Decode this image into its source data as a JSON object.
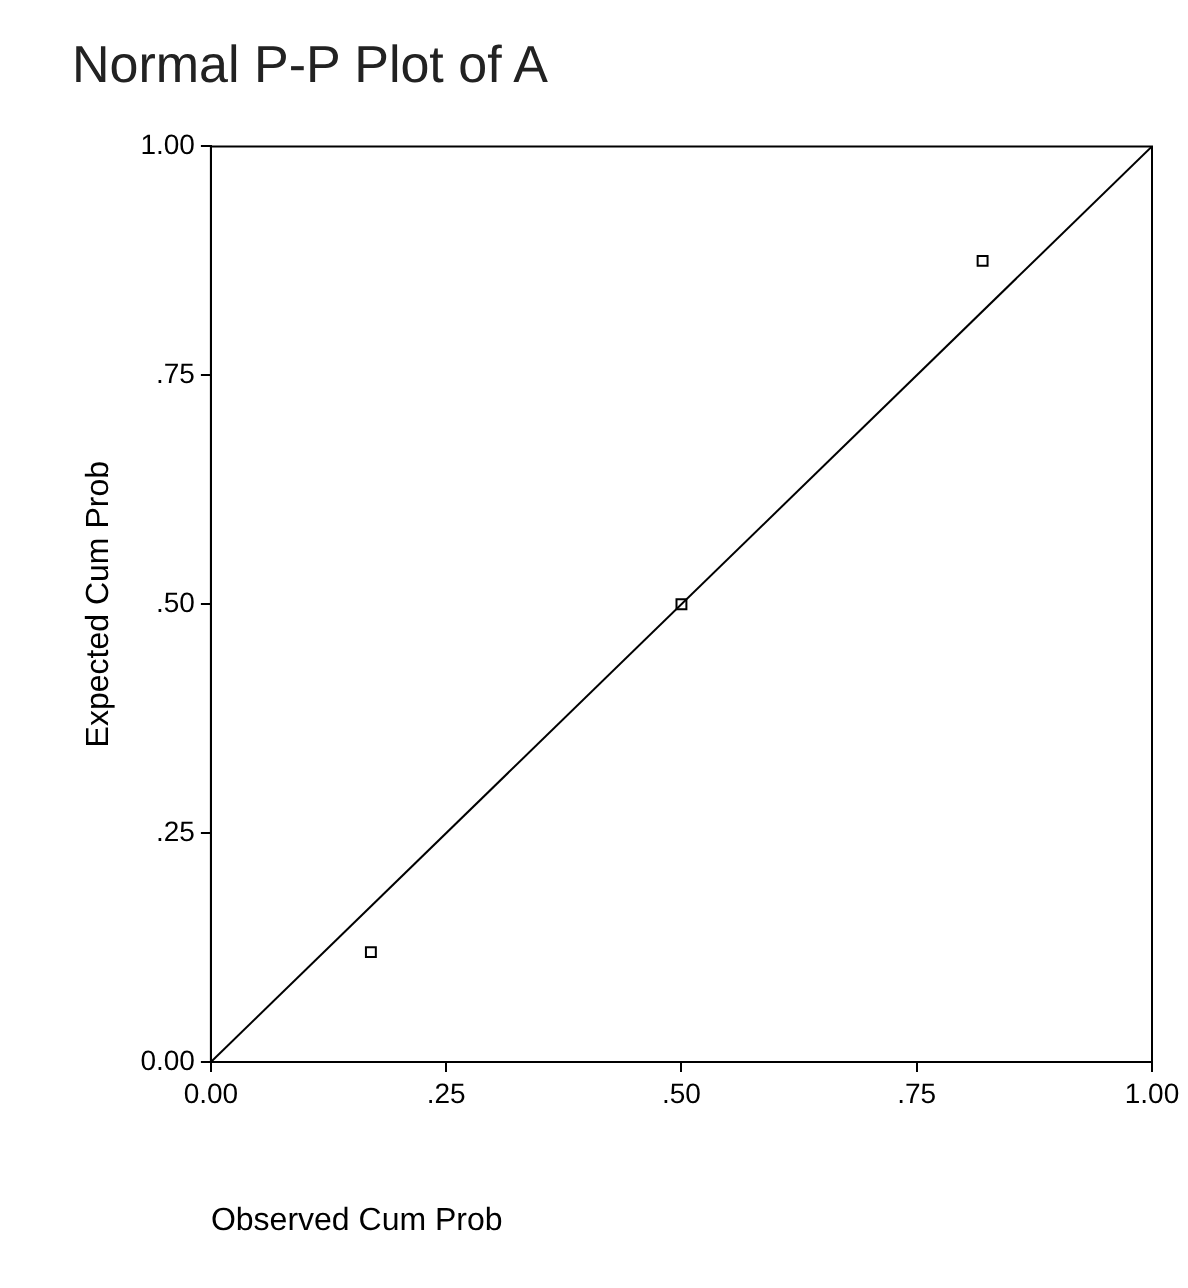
{
  "chart_data": {
    "type": "scatter",
    "title": "Normal P-P Plot of A",
    "xlabel": "Observed Cum Prob",
    "ylabel": "Expected Cum Prob",
    "series": [
      {
        "x": [
          0.17,
          0.5,
          0.82
        ],
        "values": [
          0.12,
          0.5,
          0.875
        ],
        "color": "#000000",
        "marker": "square"
      },
      {
        "type": "line",
        "x": [
          0,
          1
        ],
        "values": [
          0,
          1
        ],
        "color": "#000000",
        "marker": "none",
        "line_style": "solid"
      }
    ],
    "xlim": [
      0,
      1
    ],
    "ylim": [
      0,
      1
    ],
    "xticks": [
      {
        "value": 0,
        "label": "0.00"
      },
      {
        "value": 0.25,
        "label": ".25"
      },
      {
        "value": 0.5,
        "label": ".50"
      },
      {
        "value": 0.75,
        "label": ".75"
      },
      {
        "value": 1,
        "label": "1.00"
      }
    ],
    "yticks": [
      {
        "value": 0,
        "label": "0.00"
      },
      {
        "value": 0.25,
        "label": ".25"
      },
      {
        "value": 0.5,
        "label": ".50"
      },
      {
        "value": 0.75,
        "label": ".75"
      },
      {
        "value": 1,
        "label": "1.00"
      }
    ],
    "grid": false,
    "legend": false
  }
}
